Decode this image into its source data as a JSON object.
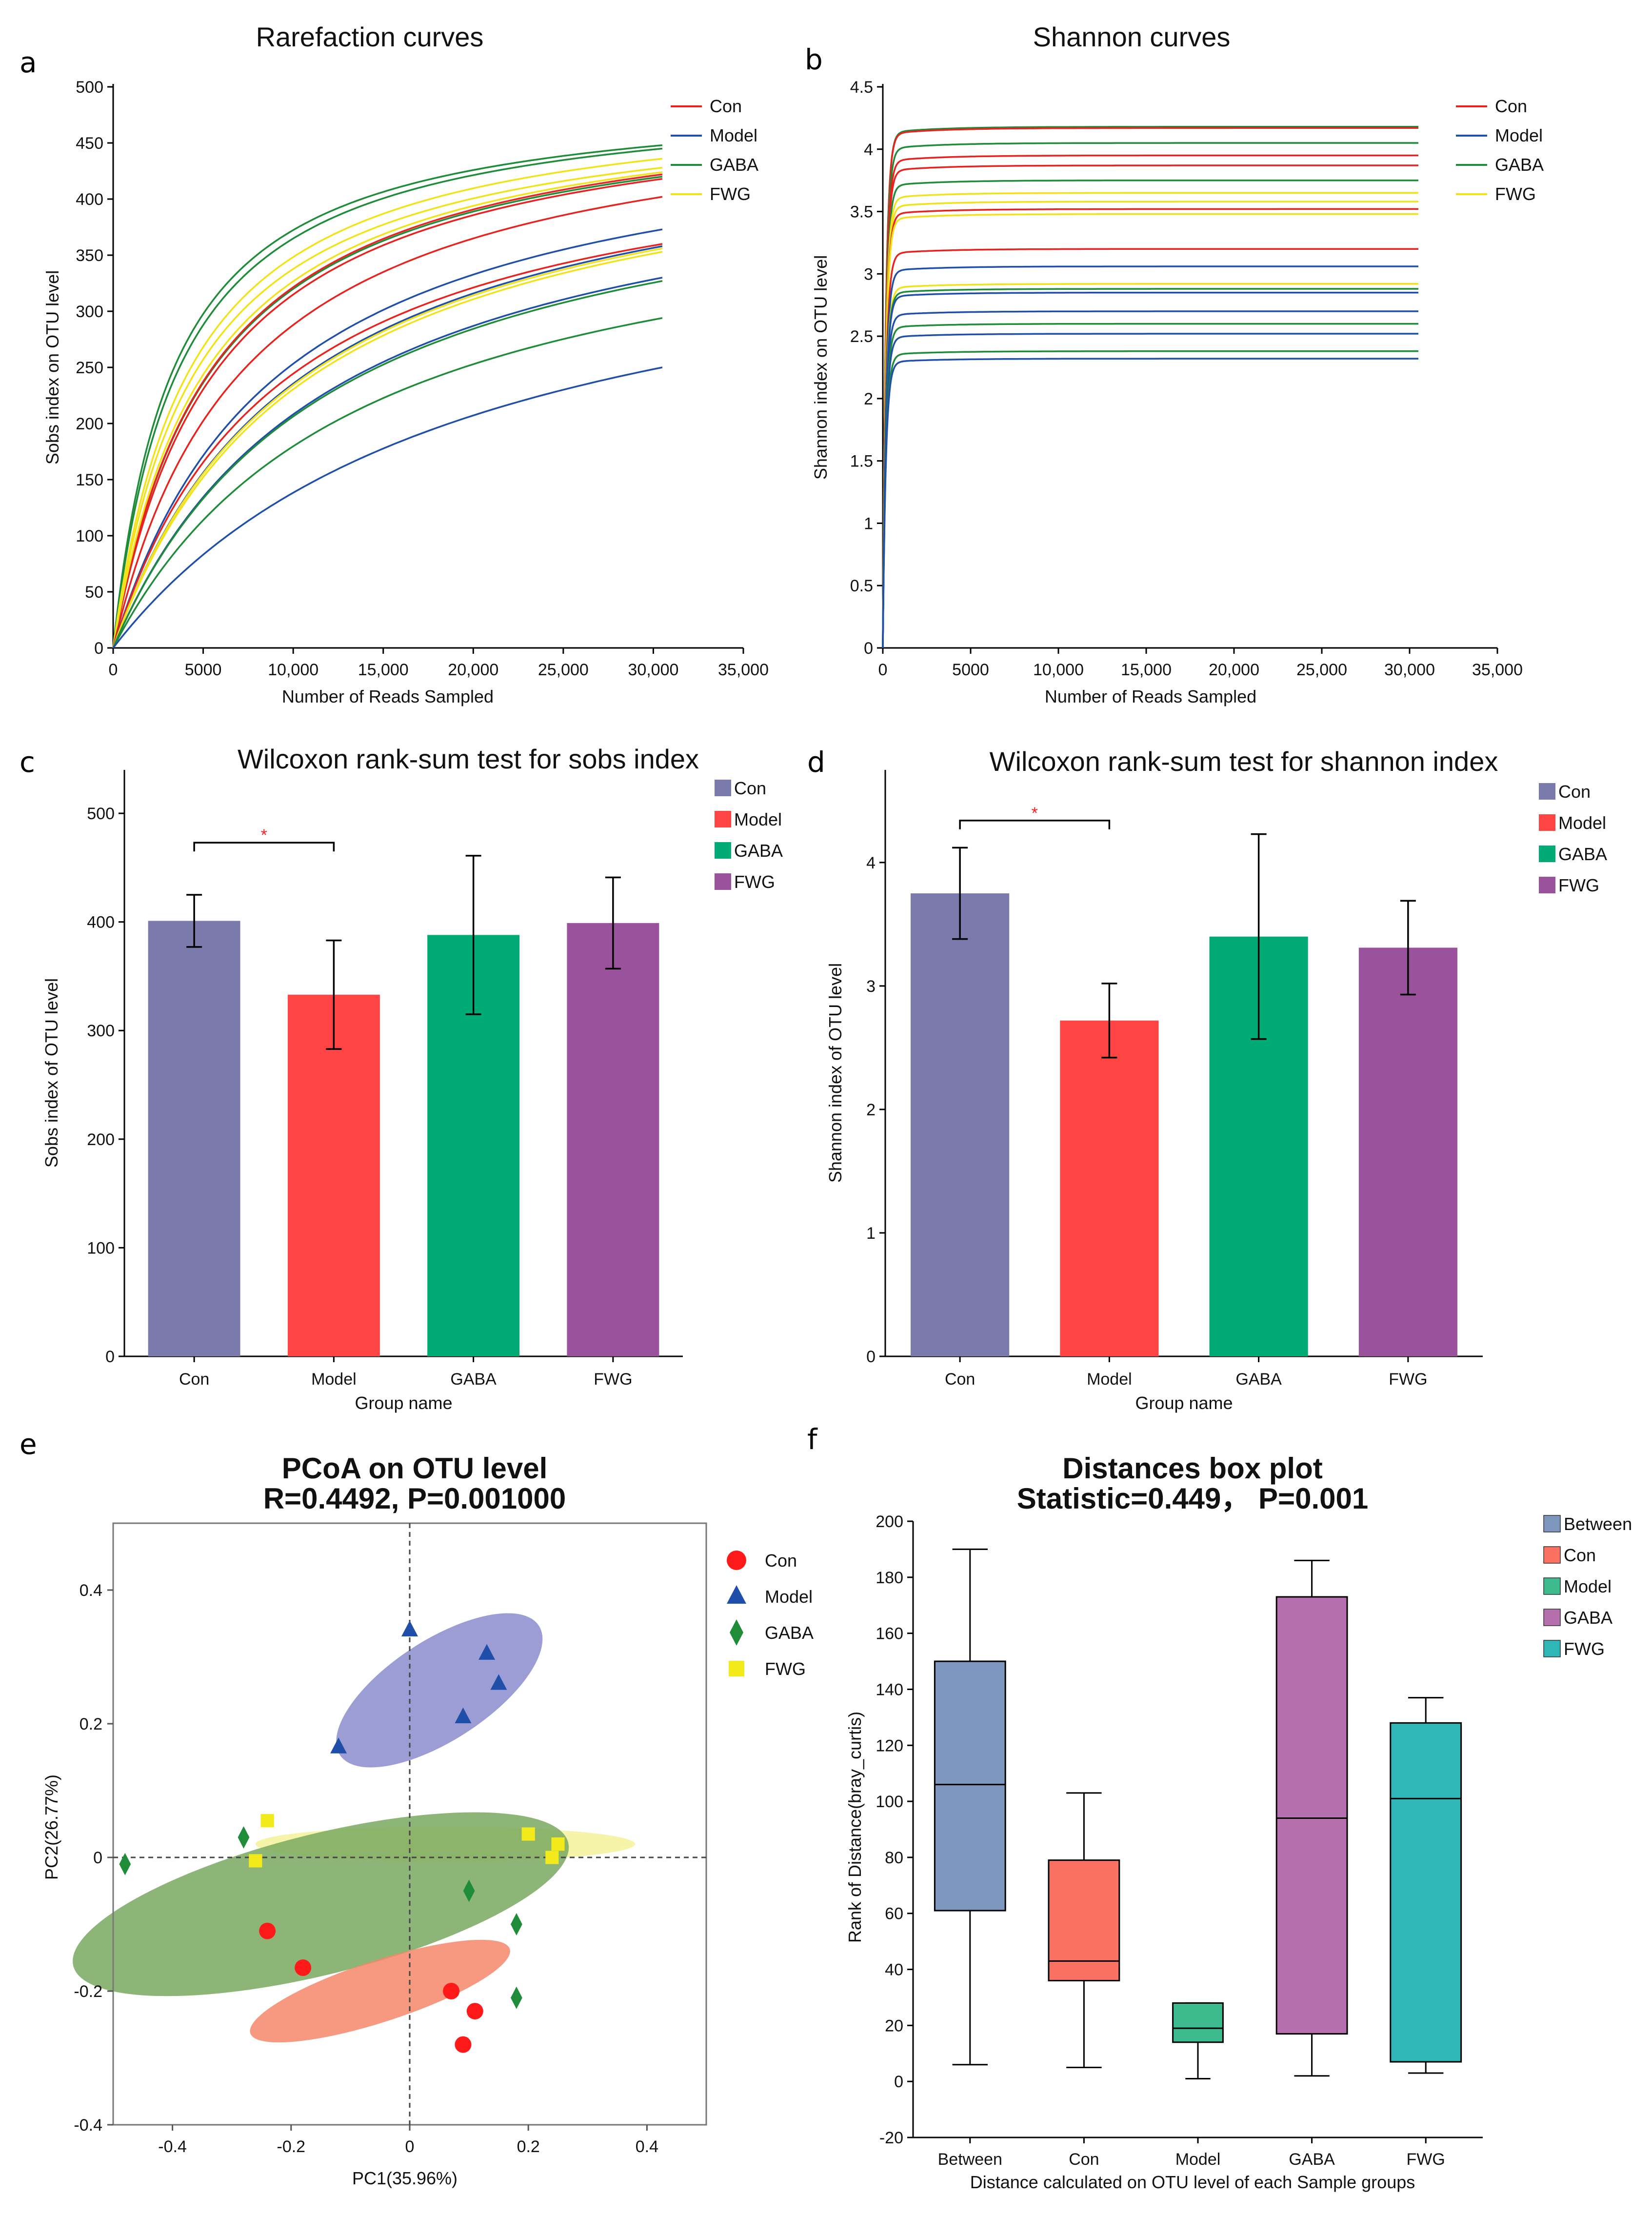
{
  "panel_labels": [
    "a",
    "b",
    "c",
    "d",
    "e",
    "f"
  ],
  "chart_data": [
    {
      "id": "a",
      "type": "line",
      "title": "Rarefaction curves",
      "xlabel": "Number of Reads Sampled",
      "ylabel": "Sobs index on OTU level",
      "xlim": [
        0,
        35000
      ],
      "ylim": [
        0,
        500
      ],
      "xticks": [
        0,
        5000,
        10000,
        15000,
        20000,
        25000,
        30000,
        35000
      ],
      "xtick_labels": [
        "0",
        "5000",
        "10,000",
        "15,000",
        "20,000",
        "25,000",
        "30,000",
        "35,000"
      ],
      "yticks": [
        0,
        50,
        100,
        150,
        200,
        250,
        300,
        350,
        400,
        450,
        500
      ],
      "ytick_labels": [
        "0",
        "50",
        "100",
        "150",
        "200",
        "250",
        "300",
        "350",
        "400",
        "450",
        "500"
      ],
      "legend": [
        {
          "name": "Con",
          "color": "#e8231f"
        },
        {
          "name": "Model",
          "color": "#1f4fa8"
        },
        {
          "name": "GABA",
          "color": "#1f8c3a"
        },
        {
          "name": "FWG",
          "color": "#f2e21a"
        }
      ],
      "x_end": 30500,
      "series": [
        {
          "group": "GABA",
          "final": 448,
          "h": 0.11
        },
        {
          "group": "GABA",
          "final": 445,
          "h": 0.12
        },
        {
          "group": "FWG",
          "final": 436,
          "h": 0.14
        },
        {
          "group": "FWG",
          "final": 428,
          "h": 0.15
        },
        {
          "group": "GABA",
          "final": 420,
          "h": 0.18
        },
        {
          "group": "Con",
          "final": 422,
          "h": 0.18
        },
        {
          "group": "Con",
          "final": 418,
          "h": 0.19
        },
        {
          "group": "FWG",
          "final": 424,
          "h": 0.17
        },
        {
          "group": "Con",
          "final": 402,
          "h": 0.24
        },
        {
          "group": "Model",
          "final": 373,
          "h": 0.3
        },
        {
          "group": "Con",
          "final": 360,
          "h": 0.3
        },
        {
          "group": "Model",
          "final": 358,
          "h": 0.34
        },
        {
          "group": "FWG",
          "final": 356,
          "h": 0.34
        },
        {
          "group": "FWG",
          "final": 353,
          "h": 0.35
        },
        {
          "group": "Model",
          "final": 330,
          "h": 0.4
        },
        {
          "group": "GABA",
          "final": 327,
          "h": 0.4
        },
        {
          "group": "GABA",
          "final": 294,
          "h": 0.45
        },
        {
          "group": "Model",
          "final": 250,
          "h": 0.65
        }
      ]
    },
    {
      "id": "b",
      "type": "line",
      "title": "Shannon curves",
      "xlabel": "Number of Reads Sampled",
      "ylabel": "Shannon index on OTU level",
      "xlim": [
        0,
        35000
      ],
      "ylim": [
        0,
        4.5
      ],
      "xticks": [
        0,
        5000,
        10000,
        15000,
        20000,
        25000,
        30000,
        35000
      ],
      "xtick_labels": [
        "0",
        "5000",
        "10,000",
        "15,000",
        "20,000",
        "25,000",
        "30,000",
        "35,000"
      ],
      "yticks": [
        0,
        0.5,
        1,
        1.5,
        2,
        2.5,
        3,
        3.5,
        4,
        4.5
      ],
      "ytick_labels": [
        "0",
        "0.5",
        "1",
        "1.5",
        "2",
        "2.5",
        "3",
        "3.5",
        "4",
        "4.5"
      ],
      "legend": [
        {
          "name": "Con",
          "color": "#e8231f"
        },
        {
          "name": "Model",
          "color": "#1f4fa8"
        },
        {
          "name": "GABA",
          "color": "#1f8c3a"
        },
        {
          "name": "FWG",
          "color": "#f2e21a"
        }
      ],
      "x_end": 30500,
      "series": [
        {
          "group": "GABA",
          "final": 4.18
        },
        {
          "group": "Con",
          "final": 4.17
        },
        {
          "group": "GABA",
          "final": 4.05
        },
        {
          "group": "Con",
          "final": 3.95
        },
        {
          "group": "Con",
          "final": 3.87
        },
        {
          "group": "GABA",
          "final": 3.75
        },
        {
          "group": "FWG",
          "final": 3.65
        },
        {
          "group": "FWG",
          "final": 3.58
        },
        {
          "group": "Con",
          "final": 3.52
        },
        {
          "group": "FWG",
          "final": 3.48
        },
        {
          "group": "Con",
          "final": 3.2
        },
        {
          "group": "Model",
          "final": 3.06
        },
        {
          "group": "FWG",
          "final": 2.92
        },
        {
          "group": "GABA",
          "final": 2.88
        },
        {
          "group": "Model",
          "final": 2.85
        },
        {
          "group": "Model",
          "final": 2.7
        },
        {
          "group": "GABA",
          "final": 2.6
        },
        {
          "group": "Model",
          "final": 2.52
        },
        {
          "group": "GABA",
          "final": 2.38
        },
        {
          "group": "Model",
          "final": 2.32
        }
      ]
    },
    {
      "id": "c",
      "type": "bar",
      "title": "Wilcoxon rank-sum test for sobs index",
      "xlabel": "Group name",
      "ylabel": "Sobs index of OTU level",
      "categories": [
        "Con",
        "Model",
        "GABA",
        "FWG"
      ],
      "values": [
        401,
        333,
        388,
        399
      ],
      "errors": [
        24,
        50,
        73,
        42
      ],
      "colors": [
        "#7a7aac",
        "#ff4444",
        "#00ab76",
        "#9a529c"
      ],
      "ylim": [
        0,
        540
      ],
      "yticks": [
        0,
        100,
        200,
        300,
        400,
        500
      ],
      "ytick_labels": [
        "0",
        "100",
        "200",
        "300",
        "400",
        "500"
      ],
      "legend": [
        "Con",
        "Model",
        "GABA",
        "FWG"
      ],
      "significance": {
        "from": "Con",
        "to": "Model",
        "y": 473,
        "marker": "*"
      }
    },
    {
      "id": "d",
      "type": "bar",
      "title": "Wilcoxon rank-sum test for shannon index",
      "xlabel": "Group name",
      "ylabel": "Shannon index of OTU level",
      "categories": [
        "Con",
        "Model",
        "GABA",
        "FWG"
      ],
      "values": [
        3.75,
        2.72,
        3.4,
        3.31
      ],
      "errors": [
        0.37,
        0.3,
        0.83,
        0.38
      ],
      "colors": [
        "#7a7aac",
        "#ff4444",
        "#00ab76",
        "#9a529c"
      ],
      "ylim": [
        0,
        4.75
      ],
      "yticks": [
        0,
        1,
        2,
        3,
        4
      ],
      "ytick_labels": [
        "0",
        "1",
        "2",
        "3",
        "4"
      ],
      "legend": [
        "Con",
        "Model",
        "GABA",
        "FWG"
      ],
      "significance": {
        "from": "Con",
        "to": "Model",
        "y": 4.34,
        "marker": "*"
      }
    },
    {
      "id": "e",
      "type": "scatter",
      "title": "PCoA on OTU level",
      "subtitle": "R=0.4492, P=0.001000",
      "xlabel": "PC1(35.96%)",
      "ylabel": "PC2(26.77%)",
      "xlim": [
        -0.5,
        0.5
      ],
      "ylim": [
        -0.4,
        0.5
      ],
      "xticks": [
        -0.4,
        -0.2,
        0,
        0.2,
        0.4
      ],
      "xtick_labels": [
        "-0.4",
        "-0.2",
        "0",
        "0.2",
        "0.4"
      ],
      "yticks": [
        -0.4,
        -0.2,
        0,
        0.2,
        0.4
      ],
      "ytick_labels": [
        "-0.4",
        "-0.2",
        "0",
        "0.2",
        "0.4"
      ],
      "legend": [
        {
          "name": "Con",
          "color": "#ff1a1a",
          "marker": "circle"
        },
        {
          "name": "Model",
          "color": "#1f4fa8",
          "marker": "triangle"
        },
        {
          "name": "GABA",
          "color": "#1f8c3a",
          "marker": "diamond"
        },
        {
          "name": "FWG",
          "color": "#f2ea1a",
          "marker": "square"
        }
      ],
      "ellipses": [
        {
          "group": "Model",
          "cx": 0.05,
          "cy": 0.25,
          "rx": 0.2,
          "ry": 0.075,
          "angle": 33,
          "color": "#8c8cce"
        },
        {
          "group": "FWG",
          "cx": 0.06,
          "cy": 0.02,
          "rx": 0.32,
          "ry": 0.026,
          "angle": 0,
          "color": "#f4f29a"
        },
        {
          "group": "GABA",
          "cx": -0.15,
          "cy": -0.07,
          "rx": 0.43,
          "ry": 0.105,
          "angle": 14,
          "color": "#7aa860"
        },
        {
          "group": "Con",
          "cx": -0.05,
          "cy": -0.2,
          "rx": 0.23,
          "ry": 0.046,
          "angle": 18,
          "color": "#f5876a"
        }
      ],
      "series": [
        {
          "name": "Con",
          "x": [
            -0.24,
            -0.18,
            0.07,
            0.11,
            0.09
          ],
          "y": [
            -0.11,
            -0.165,
            -0.2,
            -0.23,
            -0.28
          ]
        },
        {
          "name": "Model",
          "x": [
            0.0,
            0.13,
            0.15,
            0.09,
            -0.12
          ],
          "y": [
            0.34,
            0.305,
            0.26,
            0.21,
            0.165
          ]
        },
        {
          "name": "GABA",
          "x": [
            -0.48,
            -0.28,
            0.1,
            0.18,
            0.18
          ],
          "y": [
            -0.01,
            0.03,
            -0.05,
            -0.1,
            -0.21
          ]
        },
        {
          "name": "FWG",
          "x": [
            -0.24,
            -0.26,
            0.2,
            0.25,
            0.24
          ],
          "y": [
            0.055,
            -0.005,
            0.035,
            0.02,
            0.0
          ]
        }
      ]
    },
    {
      "id": "f",
      "type": "box",
      "title": "Distances box plot",
      "subtitle": "Statistic=0.449， P=0.001",
      "xlabel": "Distance calculated on OTU level of each Sample groups",
      "ylabel": "Rank of Distance(bray_curtis)",
      "categories": [
        "Between",
        "Con",
        "Model",
        "GABA",
        "FWG"
      ],
      "ylim": [
        -20,
        200
      ],
      "yticks": [
        -20,
        0,
        20,
        40,
        60,
        80,
        100,
        120,
        140,
        160,
        180,
        200
      ],
      "ytick_labels": [
        "-20",
        "0",
        "20",
        "40",
        "60",
        "80",
        "100",
        "120",
        "140",
        "160",
        "180",
        "200"
      ],
      "boxes": [
        {
          "name": "Between",
          "min": 6,
          "q1": 61,
          "median": 106,
          "q3": 150,
          "max": 190,
          "color": "#7e97bf"
        },
        {
          "name": "Con",
          "min": 5,
          "q1": 36,
          "median": 43,
          "q3": 79,
          "max": 103,
          "color": "#fc7262"
        },
        {
          "name": "Model",
          "min": 1,
          "q1": 14,
          "median": 19,
          "q3": 28,
          "max": 28,
          "color": "#3dbb8e"
        },
        {
          "name": "GABA",
          "min": 2,
          "q1": 17,
          "median": 94,
          "q3": 173,
          "max": 186,
          "color": "#b56fae"
        },
        {
          "name": "FWG",
          "min": 3,
          "q1": 7,
          "median": 101,
          "q3": 128,
          "max": 137,
          "color": "#2fb6b6"
        }
      ],
      "legend": [
        {
          "name": "Between",
          "color": "#7e97bf"
        },
        {
          "name": "Con",
          "color": "#fc7262"
        },
        {
          "name": "Model",
          "color": "#3dbb8e"
        },
        {
          "name": "GABA",
          "color": "#b56fae"
        },
        {
          "name": "FWG",
          "color": "#2fb6b6"
        }
      ]
    }
  ]
}
